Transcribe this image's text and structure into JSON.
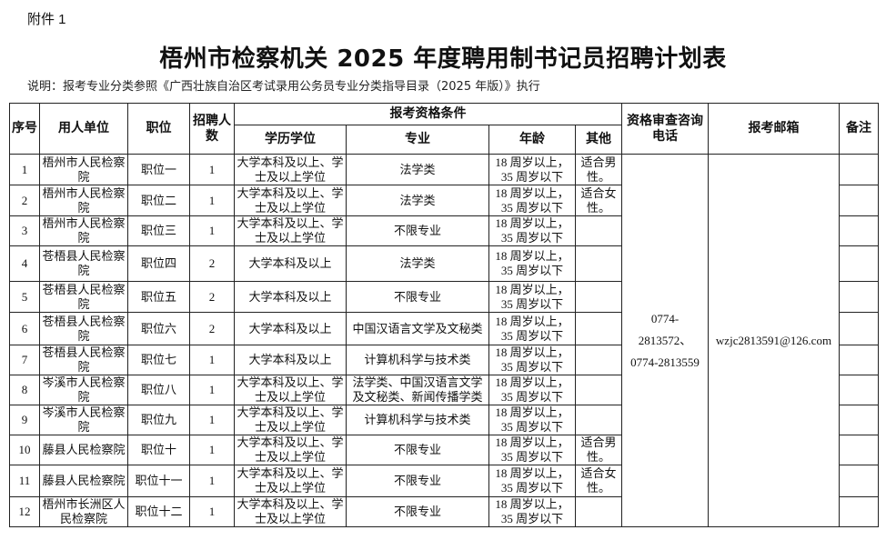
{
  "attachment": "附件 1",
  "title": "梧州市检察机关 2025 年度聘用制书记员招聘计划表",
  "note": "说明：报考专业分类参照《广西壮族自治区考试录用公务员专业分类指导目录（2025 年版）》执行",
  "headers": {
    "no": "序号",
    "unit": "用人单位",
    "position": "职位",
    "count": "招聘人数",
    "conditions": "报考资格条件",
    "education": "学历学位",
    "major": "专业",
    "age": "年龄",
    "other": "其他",
    "phone": "资格审查咨询电话",
    "email": "报考邮箱",
    "remark": "备注"
  },
  "phone": "0774-2813572、0774-2813559",
  "email": "wzjc2813591@126.com",
  "rows": [
    {
      "no": "1",
      "unit": "梧州市人民检察院",
      "position": "职位一",
      "count": "1",
      "education": "大学本科及以上、学士及以上学位",
      "major": "法学类",
      "age": "18 周岁以上，35 周岁以下",
      "other": "适合男性。"
    },
    {
      "no": "2",
      "unit": "梧州市人民检察院",
      "position": "职位二",
      "count": "1",
      "education": "大学本科及以上、学士及以上学位",
      "major": "法学类",
      "age": "18 周岁以上，35 周岁以下",
      "other": "适合女性。"
    },
    {
      "no": "3",
      "unit": "梧州市人民检察院",
      "position": "职位三",
      "count": "1",
      "education": "大学本科及以上、学士及以上学位",
      "major": "不限专业",
      "age": "18 周岁以上，35 周岁以下",
      "other": ""
    },
    {
      "no": "4",
      "unit": "苍梧县人民检察院",
      "position": "职位四",
      "count": "2",
      "education": "大学本科及以上",
      "major": "法学类",
      "age": "18 周岁以上，35 周岁以下",
      "other": ""
    },
    {
      "no": "5",
      "unit": "苍梧县人民检察院",
      "position": "职位五",
      "count": "2",
      "education": "大学本科及以上",
      "major": "不限专业",
      "age": "18 周岁以上，35 周岁以下",
      "other": ""
    },
    {
      "no": "6",
      "unit": "苍梧县人民检察院",
      "position": "职位六",
      "count": "2",
      "education": "大学本科及以上",
      "major": "中国汉语言文学及文秘类",
      "age": "18 周岁以上，35 周岁以下",
      "other": ""
    },
    {
      "no": "7",
      "unit": "苍梧县人民检察院",
      "position": "职位七",
      "count": "1",
      "education": "大学本科及以上",
      "major": "计算机科学与技术类",
      "age": "18 周岁以上，35 周岁以下",
      "other": ""
    },
    {
      "no": "8",
      "unit": "岑溪市人民检察院",
      "position": "职位八",
      "count": "1",
      "education": "大学本科及以上、学士及以上学位",
      "major": "法学类、中国汉语言文学及文秘类、新闻传播学类",
      "age": "18 周岁以上，35 周岁以下",
      "other": ""
    },
    {
      "no": "9",
      "unit": "岑溪市人民检察院",
      "position": "职位九",
      "count": "1",
      "education": "大学本科及以上、学士及以上学位",
      "major": "计算机科学与技术类",
      "age": "18 周岁以上，35 周岁以下",
      "other": ""
    },
    {
      "no": "10",
      "unit": "藤县人民检察院",
      "position": "职位十",
      "count": "1",
      "education": "大学本科及以上、学士及以上学位",
      "major": "不限专业",
      "age": "18 周岁以上，35 周岁以下",
      "other": "适合男性。"
    },
    {
      "no": "11",
      "unit": "藤县人民检察院",
      "position": "职位十一",
      "count": "1",
      "education": "大学本科及以上、学士及以上学位",
      "major": "不限专业",
      "age": "18 周岁以上，35 周岁以下",
      "other": "适合女性。"
    },
    {
      "no": "12",
      "unit": "梧州市长洲区人民检察院",
      "position": "职位十二",
      "count": "1",
      "education": "大学本科及以上、学士及以上学位",
      "major": "不限专业",
      "age": "18 周岁以上，35 周岁以下",
      "other": ""
    }
  ]
}
